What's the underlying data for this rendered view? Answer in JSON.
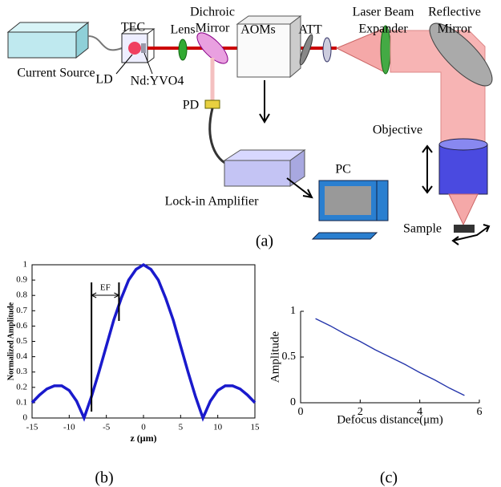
{
  "diagram": {
    "current_source": "Current Source",
    "tec": "TEC",
    "lens": "Lens",
    "dichroic_mirror": [
      "Dichroic",
      "Mirror"
    ],
    "aoms": "AOMs",
    "att": "ATT",
    "laser_beam_expander": [
      "Laser Beam",
      "Expander"
    ],
    "reflective_mirror": [
      "Reflective",
      "Mirror"
    ],
    "ld": "LD",
    "crystal": "Nd:YVO4",
    "pd": "PD",
    "objective": "Objective",
    "lock_in_amplifier": "Lock-in Amplifier",
    "pc": "PC",
    "sample": "Sample",
    "caption": "(a)"
  },
  "chart_data": [
    {
      "type": "line",
      "caption": "(b)",
      "xlabel": "z (μm)",
      "ylabel": "Normalized Amplitude",
      "annotation": "EF",
      "vlines": [
        -7,
        -3.3
      ],
      "x": [
        -15,
        -14,
        -13,
        -12,
        -11,
        -10,
        -9,
        -8,
        -7,
        -6,
        -5,
        -4,
        -3,
        -2,
        -1,
        0,
        1,
        2,
        3,
        4,
        5,
        6,
        7,
        8,
        9,
        10,
        11,
        12,
        13,
        14,
        15
      ],
      "series": [
        {
          "color": "#1a1acc",
          "values": [
            0.1,
            0.15,
            0.19,
            0.21,
            0.21,
            0.18,
            0.11,
            0,
            0.14,
            0.3,
            0.47,
            0.64,
            0.78,
            0.9,
            0.97,
            1,
            0.97,
            0.9,
            0.78,
            0.64,
            0.47,
            0.3,
            0.14,
            0,
            0.11,
            0.18,
            0.21,
            0.21,
            0.19,
            0.15,
            0.1
          ]
        }
      ],
      "xlim": [
        -15,
        15
      ],
      "xticks": [
        -15,
        -10,
        -5,
        0,
        5,
        10,
        15
      ],
      "ylim": [
        0,
        1
      ],
      "yticks": [
        0,
        0.1,
        0.2,
        0.3,
        0.4,
        0.5,
        0.6,
        0.7,
        0.8,
        0.9,
        1
      ]
    },
    {
      "type": "line",
      "caption": "(c)",
      "xlabel": "Defocus distance(μm)",
      "ylabel": "Amplitude",
      "x": [
        0.5,
        1,
        1.5,
        2,
        2.5,
        3,
        3.5,
        4,
        4.5,
        5,
        5.5
      ],
      "series": [
        {
          "color": "#2233aa",
          "values": [
            0.92,
            0.84,
            0.75,
            0.67,
            0.58,
            0.5,
            0.42,
            0.33,
            0.25,
            0.16,
            0.08
          ]
        }
      ],
      "xlim": [
        0,
        6
      ],
      "xticks": [
        0,
        2,
        4,
        6
      ],
      "ylim": [
        0,
        1
      ],
      "yticks": [
        0,
        0.5,
        1
      ]
    }
  ]
}
